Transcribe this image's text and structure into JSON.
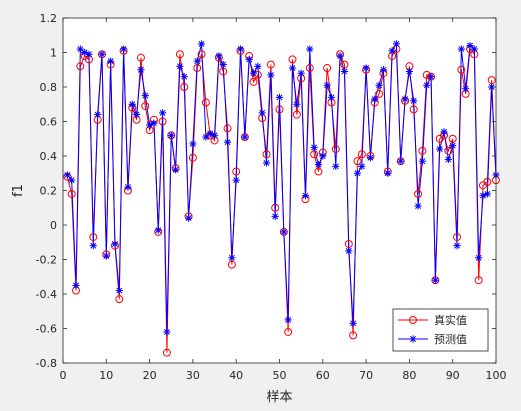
{
  "chart_data": {
    "type": "line",
    "xlabel": "样本",
    "ylabel": "f1",
    "xlim": [
      0,
      100
    ],
    "ylim": [
      -0.8,
      1.2
    ],
    "xticks": [
      0,
      10,
      20,
      30,
      40,
      50,
      60,
      70,
      80,
      90,
      100
    ],
    "yticks": [
      -0.8,
      -0.6,
      -0.4,
      -0.2,
      0,
      0.2,
      0.4,
      0.6,
      0.8,
      1,
      1.2
    ],
    "ytick_labels": [
      "-0.8",
      "-0.6",
      "-0.4",
      "-0.2",
      "0",
      "0.2",
      "0.4",
      "0.6",
      "0.8",
      "1",
      "1.2"
    ],
    "grid": false,
    "legend_position": "bottom-right",
    "x": [
      1,
      2,
      3,
      4,
      5,
      6,
      7,
      8,
      9,
      10,
      11,
      12,
      13,
      14,
      15,
      16,
      17,
      18,
      19,
      20,
      21,
      22,
      23,
      24,
      25,
      26,
      27,
      28,
      29,
      30,
      31,
      32,
      33,
      34,
      35,
      36,
      37,
      38,
      39,
      40,
      41,
      42,
      43,
      44,
      45,
      46,
      47,
      48,
      49,
      50,
      51,
      52,
      53,
      54,
      55,
      56,
      57,
      58,
      59,
      60,
      61,
      62,
      63,
      64,
      65,
      66,
      67,
      68,
      69,
      70,
      71,
      72,
      73,
      74,
      75,
      76,
      77,
      78,
      79,
      80,
      81,
      82,
      83,
      84,
      85,
      86,
      87,
      88,
      89,
      90,
      91,
      92,
      93,
      94,
      95,
      96,
      97,
      98,
      99,
      100
    ],
    "series": [
      {
        "name": "真实值",
        "color": "#ff0000",
        "marker": "circle",
        "values": [
          0.28,
          0.18,
          -0.38,
          0.92,
          0.98,
          0.96,
          -0.07,
          0.61,
          0.99,
          -0.17,
          0.93,
          -0.12,
          -0.43,
          1.01,
          0.2,
          0.68,
          0.61,
          0.97,
          0.69,
          0.55,
          0.61,
          -0.04,
          0.6,
          -0.74,
          0.52,
          0.33,
          0.99,
          0.8,
          0.05,
          0.39,
          0.91,
          0.99,
          0.71,
          0.52,
          0.49,
          0.97,
          0.89,
          0.56,
          -0.23,
          0.31,
          1.01,
          0.51,
          0.98,
          0.83,
          0.87,
          0.62,
          0.41,
          0.93,
          0.1,
          0.67,
          -0.04,
          -0.62,
          0.96,
          0.64,
          0.85,
          0.15,
          0.91,
          0.41,
          0.31,
          0.42,
          0.91,
          0.71,
          0.44,
          0.99,
          0.93,
          -0.11,
          -0.64,
          0.37,
          0.41,
          0.9,
          0.4,
          0.71,
          0.76,
          0.88,
          0.31,
          0.98,
          1.02,
          0.37,
          0.72,
          0.92,
          0.67,
          0.18,
          0.43,
          0.87,
          0.86,
          -0.32,
          0.5,
          0.52,
          0.43,
          0.5,
          -0.07,
          0.9,
          0.76,
          1.02,
          0.99,
          -0.32,
          0.23,
          0.25,
          0.84,
          0.26
        ]
      },
      {
        "name": "预测值",
        "color": "#0000ff",
        "marker": "star",
        "values": [
          0.29,
          0.26,
          -0.35,
          1.02,
          1.0,
          0.99,
          -0.12,
          0.64,
          0.99,
          -0.18,
          0.95,
          -0.11,
          -0.38,
          1.02,
          0.22,
          0.7,
          0.64,
          0.9,
          0.75,
          0.58,
          0.59,
          -0.03,
          0.65,
          -0.62,
          0.52,
          0.32,
          0.92,
          0.86,
          0.04,
          0.47,
          0.95,
          1.05,
          0.51,
          0.53,
          0.52,
          0.98,
          0.93,
          0.48,
          -0.19,
          0.26,
          1.02,
          0.51,
          0.96,
          0.88,
          0.92,
          0.65,
          0.36,
          0.87,
          0.05,
          0.74,
          -0.04,
          -0.55,
          0.91,
          0.7,
          0.88,
          0.17,
          1.02,
          0.45,
          0.35,
          0.4,
          0.81,
          0.74,
          0.34,
          0.98,
          0.89,
          -0.15,
          -0.57,
          0.3,
          0.34,
          0.91,
          0.39,
          0.73,
          0.81,
          0.9,
          0.3,
          1.01,
          1.05,
          0.37,
          0.73,
          0.89,
          0.72,
          0.11,
          0.37,
          0.81,
          0.86,
          -0.32,
          0.44,
          0.54,
          0.38,
          0.46,
          -0.12,
          1.02,
          0.79,
          1.04,
          1.02,
          -0.19,
          0.17,
          0.18,
          0.8,
          0.29
        ]
      }
    ]
  }
}
